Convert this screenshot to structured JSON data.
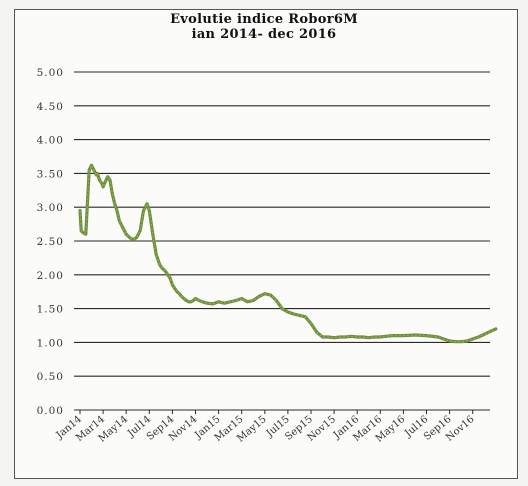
{
  "chart_data": {
    "type": "line",
    "title_line1": "Evolutie indice Robor6M",
    "title_line2": "ian 2014- dec 2016",
    "xlabel": "",
    "ylabel": "",
    "ylim": [
      0,
      5
    ],
    "yticks": [
      "0.00",
      "0.50",
      "1.00",
      "1.50",
      "2.00",
      "2.50",
      "3.00",
      "3.50",
      "4.00",
      "4.50",
      "5.00"
    ],
    "xticks": [
      "Jan14",
      "Mar14",
      "May14",
      "Jul14",
      "Sep14",
      "Nov14",
      "Jan15",
      "Mar15",
      "May15",
      "Jul15",
      "Sep15",
      "Nov15",
      "Jan16",
      "Mar16",
      "May16",
      "Jul16",
      "Sep16",
      "Nov16"
    ],
    "grid": true,
    "series": [
      {
        "color": "#6f8f3c",
        "x": [
          0.0,
          0.1,
          0.3,
          0.5,
          0.7,
          0.8,
          1.0,
          1.2,
          1.4,
          1.5,
          1.7,
          1.9,
          2.0,
          2.2,
          2.4,
          2.6,
          2.8,
          3.0,
          3.2,
          3.4,
          3.7,
          4.0,
          4.3,
          4.6,
          4.9,
          5.2,
          5.5,
          5.8,
          6.0,
          6.3,
          6.6,
          6.9,
          7.1,
          7.4,
          7.6,
          7.8,
          8.0,
          8.2,
          8.4,
          8.6,
          8.8,
          9.0,
          9.2,
          9.4,
          9.6,
          9.8,
          10.0,
          10.3,
          10.6,
          11.0,
          11.5,
          12.0,
          12.5,
          13.0,
          13.5,
          14.0,
          14.5,
          15.0,
          15.5,
          16.0,
          16.5,
          17.0,
          17.5,
          18.0,
          18.5,
          19.0,
          19.5,
          20.0,
          20.5,
          21.0,
          21.5,
          22.0,
          22.5,
          23.0,
          23.5,
          24.0,
          24.5,
          25.0,
          25.5,
          26.0,
          26.5,
          27.0,
          28.0,
          29.0,
          30.0,
          31.0,
          31.5,
          32.0,
          32.5,
          33.0,
          33.5,
          34.0,
          34.5,
          35.0,
          35.5,
          36.0
        ],
        "values": [
          2.95,
          2.65,
          2.62,
          2.6,
          3.25,
          3.55,
          3.62,
          3.55,
          3.48,
          3.5,
          3.4,
          3.35,
          3.3,
          3.38,
          3.45,
          3.4,
          3.2,
          3.05,
          2.95,
          2.8,
          2.7,
          2.6,
          2.55,
          2.52,
          2.55,
          2.65,
          2.95,
          3.05,
          2.95,
          2.6,
          2.3,
          2.15,
          2.1,
          2.05,
          2.0,
          1.95,
          1.85,
          1.8,
          1.75,
          1.72,
          1.68,
          1.65,
          1.62,
          1.6,
          1.6,
          1.62,
          1.65,
          1.62,
          1.6,
          1.58,
          1.57,
          1.6,
          1.58,
          1.6,
          1.62,
          1.65,
          1.6,
          1.62,
          1.68,
          1.72,
          1.7,
          1.62,
          1.5,
          1.45,
          1.42,
          1.4,
          1.38,
          1.28,
          1.15,
          1.08,
          1.08,
          1.07,
          1.08,
          1.08,
          1.09,
          1.08,
          1.08,
          1.07,
          1.08,
          1.08,
          1.09,
          1.1,
          1.1,
          1.11,
          1.1,
          1.08,
          1.05,
          1.02,
          1.01,
          1.01,
          1.02,
          1.05,
          1.08,
          1.12,
          1.16,
          1.2
        ]
      }
    ]
  }
}
